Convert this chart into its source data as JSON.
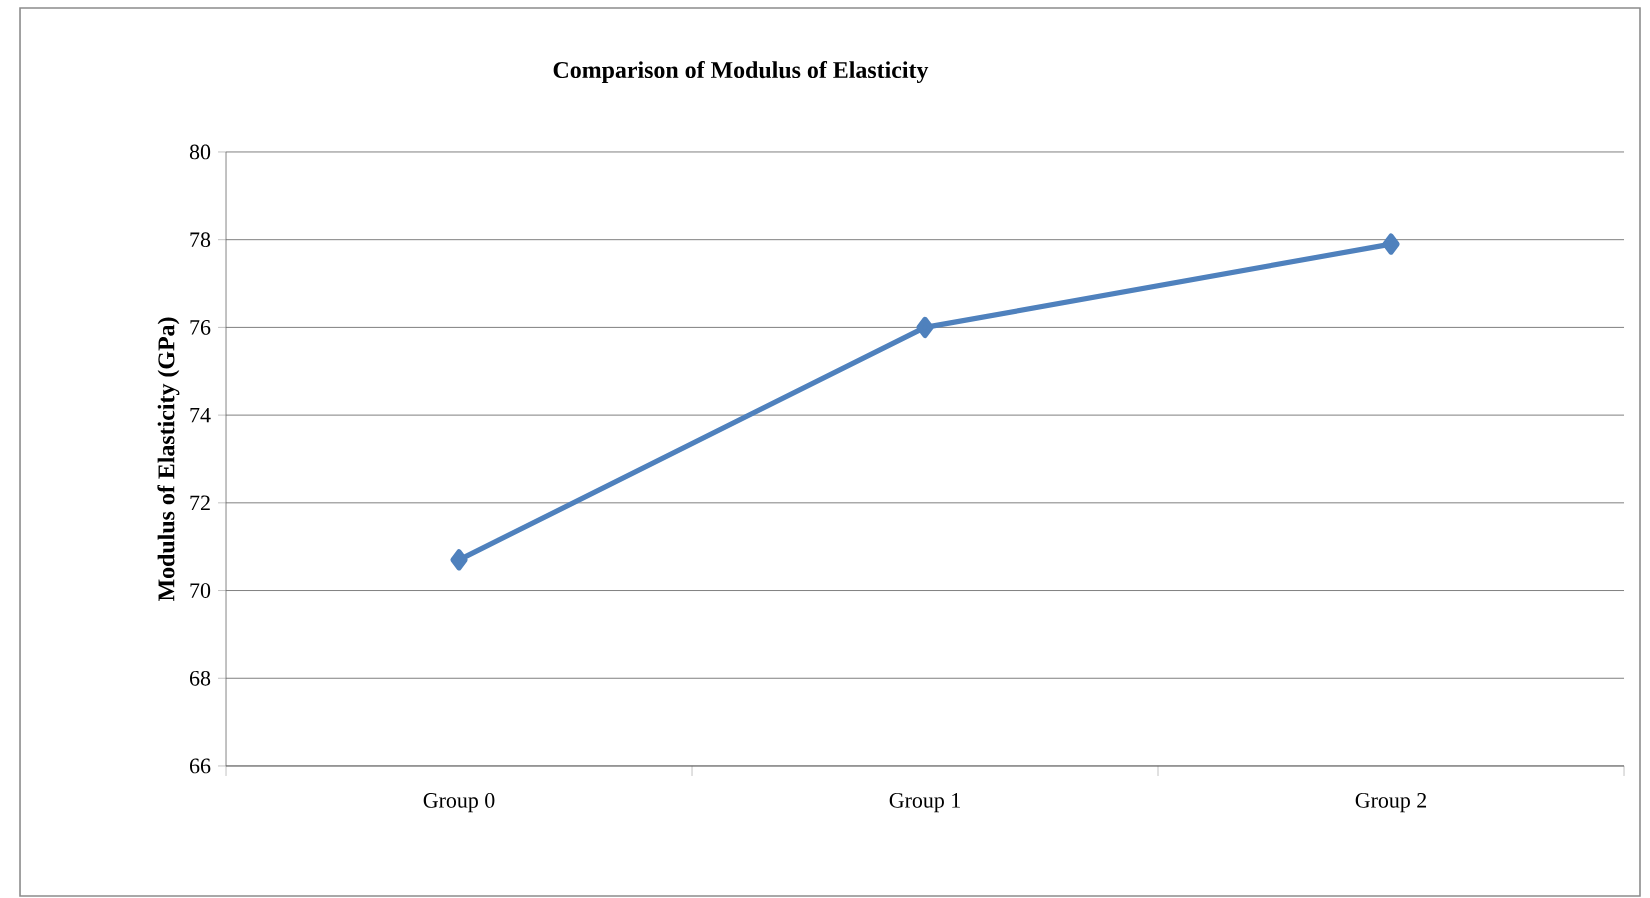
{
  "chart_data": {
    "type": "line",
    "title": "Comparison of Modulus of Elasticity",
    "ylabel": "Modulus of Elasticity (GPa)",
    "categories": [
      "Group 0",
      "Group 1",
      "Group 2"
    ],
    "series": [
      {
        "color": "#4f81bd",
        "values": [
          70.7,
          76.0,
          77.9
        ]
      }
    ],
    "ylim": [
      66,
      80
    ],
    "yticks": [
      66,
      68,
      70,
      72,
      74,
      76,
      78,
      80
    ],
    "grid": "y",
    "marker": "diamond",
    "line_style": "solid"
  }
}
